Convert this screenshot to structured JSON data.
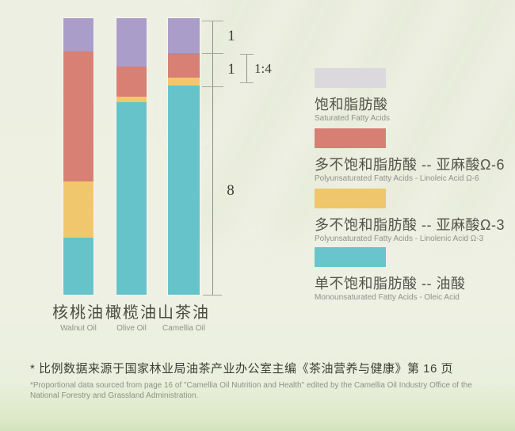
{
  "chart_data": {
    "type": "bar",
    "stacked": true,
    "orientation": "vertical",
    "values_are": "percent_of_bar_height",
    "grid": false,
    "legend_position": "right",
    "categories": [
      {
        "zh": "核桃油",
        "en": "Walnut Oil"
      },
      {
        "zh": "橄榄油",
        "en": "Olive Oil"
      },
      {
        "zh": "山茶油",
        "en": "Camellia Oil"
      }
    ],
    "series": [
      {
        "name_zh": "饱和脂肪酸",
        "name_en": "Saturated Fatty Acids",
        "bar_color": "#ab9dc9",
        "values": [
          12.0,
          17.5,
          12.6
        ]
      },
      {
        "name_zh": "多不饱和脂肪酸 -- 亚麻酸Ω-6",
        "name_en": "Polyunsaturated Fatty Acids - Linoleic Acid Ω-6",
        "bar_color": "#d88074",
        "values": [
          47.0,
          10.9,
          8.9
        ]
      },
      {
        "name_zh": "多不饱和脂肪酸 -- 亚麻酸Ω-3",
        "name_en": "Polyunsaturated Fatty Acids - Linolenic Acid Ω-3",
        "bar_color": "#f0c76c",
        "values": [
          20.3,
          2.0,
          2.9
        ]
      },
      {
        "name_zh": "单不饱和脂肪酸 -- 油酸",
        "name_en": "Monounsaturated Fatty Acids - Oleic Acid",
        "bar_color": "#66c3ca",
        "values": [
          20.7,
          69.6,
          75.6
        ]
      }
    ],
    "ratio_annotations": {
      "saturated": "1",
      "polyunsaturated": "1",
      "poly_inner_ratio": "1:4",
      "monounsaturated": "8"
    }
  },
  "legend": {
    "items": [
      {
        "zh": "饱和脂肪酸",
        "en": "Saturated Fatty Acids",
        "swatch": "#dbd9de"
      },
      {
        "zh": "多不饱和脂肪酸 -- 亚麻酸Ω-6",
        "en": "Polyunsaturated Fatty Acids - Linoleic Acid Ω-6",
        "swatch": "#d87f74"
      },
      {
        "zh": "多不饱和脂肪酸 -- 亚麻酸Ω-3",
        "en": "Polyunsaturated Fatty Acids - Linolenic Acid Ω-3",
        "swatch": "#efc66b"
      },
      {
        "zh": "单不饱和脂肪酸 -- 油酸",
        "en": "Monounsaturated Fatty Acids - Oleic Acid",
        "swatch": "#69c4cb"
      }
    ]
  },
  "footnote": {
    "zh": "* 比例数据来源于国家林业局油茶产业办公室主编《茶油营养与健康》第 16 页",
    "en": "*Proportional data sourced from page 16 of \"Camellia Oil Nutrition and Health\" edited by the Camellia Oil Industry Office of the National Forestry and Grassland Administration."
  }
}
